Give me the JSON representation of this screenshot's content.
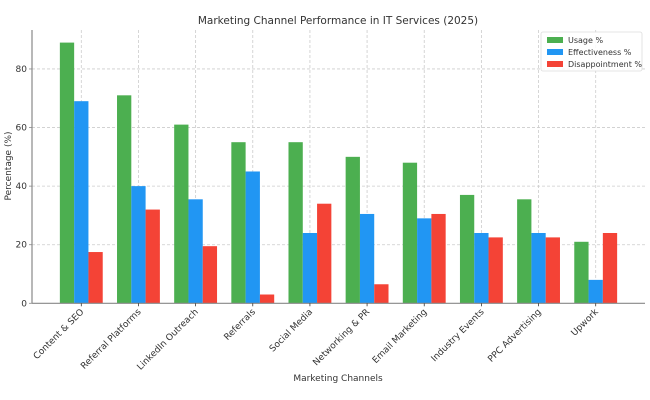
{
  "chart_data": {
    "type": "bar",
    "title": "Marketing Channel Performance in IT Services (2025)",
    "xlabel": "Marketing Channels",
    "ylabel": "Percentage (%)",
    "ylim": [
      0,
      93.3
    ],
    "yticks": [
      0,
      20,
      40,
      60,
      80
    ],
    "grid": true,
    "legend_position": "top-right",
    "categories": [
      "Content & SEO",
      "Referral Platforms",
      "LinkedIn Outreach",
      "Referrals",
      "Social Media",
      "Networking & PR",
      "Email Marketing",
      "Industry Events",
      "PPC Advertising",
      "Upwork"
    ],
    "series": [
      {
        "name": "Usage %",
        "color": "#4CAF50",
        "values": [
          89,
          71,
          61,
          55,
          55,
          50,
          48,
          37,
          35.5,
          21
        ]
      },
      {
        "name": "Effectiveness %",
        "color": "#2196F3",
        "values": [
          69,
          40,
          35.5,
          45,
          24,
          30.5,
          29,
          24,
          24,
          8
        ]
      },
      {
        "name": "Disappointment %",
        "color": "#F44336",
        "values": [
          17.5,
          32,
          19.5,
          3,
          34,
          6.5,
          30.5,
          22.5,
          22.5,
          24
        ]
      }
    ]
  }
}
